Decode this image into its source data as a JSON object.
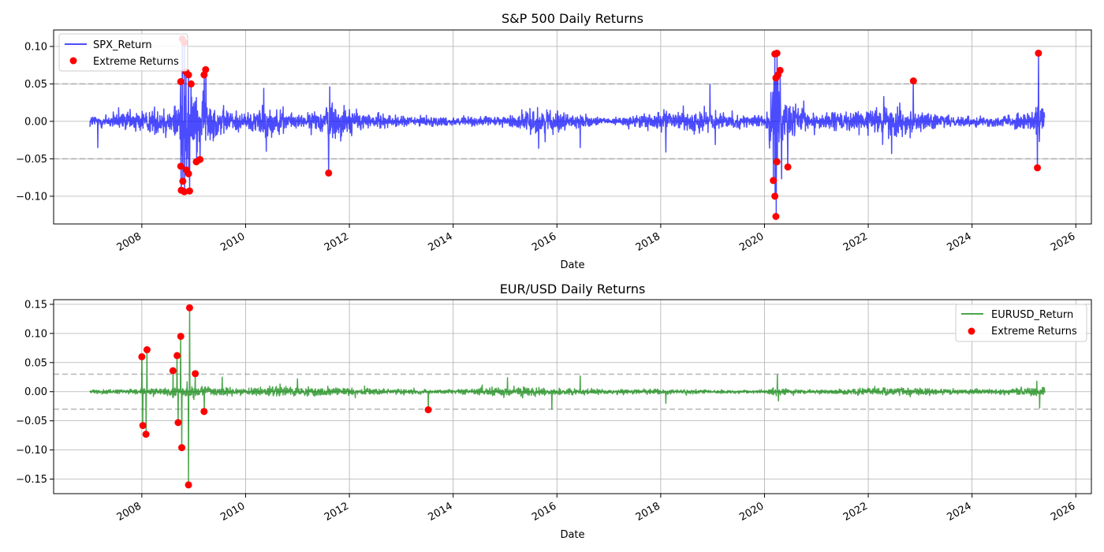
{
  "chart_data": [
    {
      "type": "line",
      "title": "S&P 500 Daily Returns",
      "xlabel": "Date",
      "ylabel": "",
      "x_ticks": [
        "2008",
        "2010",
        "2012",
        "2014",
        "2016",
        "2018",
        "2020",
        "2022",
        "2024",
        "2026"
      ],
      "y_ticks": [
        "0.10",
        "0.05",
        "0.00",
        "−0.05",
        "−0.10"
      ],
      "xlim": [
        2006.3,
        2026.3
      ],
      "ylim": [
        -0.137,
        0.122
      ],
      "threshold_lines": [
        0.05,
        -0.05
      ],
      "legend_position": "upper left",
      "grid": true,
      "series": [
        {
          "name": "SPX_Return",
          "kind": "line",
          "color": "#0000ff",
          "alpha": 0.7,
          "x_range": [
            2007.0,
            2025.4
          ],
          "noise_envelope": [
            [
              2007.0,
              0.012
            ],
            [
              2007.5,
              0.016
            ],
            [
              2008.0,
              0.022
            ],
            [
              2008.6,
              0.028
            ],
            [
              2008.75,
              0.07
            ],
            [
              2009.0,
              0.055
            ],
            [
              2009.3,
              0.04
            ],
            [
              2009.6,
              0.025
            ],
            [
              2010.0,
              0.015
            ],
            [
              2010.35,
              0.03
            ],
            [
              2010.7,
              0.02
            ],
            [
              2011.0,
              0.012
            ],
            [
              2011.5,
              0.02
            ],
            [
              2011.6,
              0.04
            ],
            [
              2011.9,
              0.03
            ],
            [
              2012.3,
              0.015
            ],
            [
              2013.0,
              0.01
            ],
            [
              2014.0,
              0.008
            ],
            [
              2015.0,
              0.009
            ],
            [
              2015.6,
              0.025
            ],
            [
              2016.0,
              0.018
            ],
            [
              2016.5,
              0.01
            ],
            [
              2017.0,
              0.005
            ],
            [
              2018.0,
              0.02
            ],
            [
              2018.3,
              0.015
            ],
            [
              2018.9,
              0.025
            ],
            [
              2019.2,
              0.012
            ],
            [
              2020.0,
              0.01
            ],
            [
              2020.17,
              0.07
            ],
            [
              2020.4,
              0.04
            ],
            [
              2020.8,
              0.02
            ],
            [
              2021.2,
              0.015
            ],
            [
              2022.0,
              0.022
            ],
            [
              2022.5,
              0.028
            ],
            [
              2023.0,
              0.018
            ],
            [
              2023.5,
              0.01
            ],
            [
              2024.5,
              0.01
            ],
            [
              2025.1,
              0.016
            ],
            [
              2025.35,
              0.04
            ],
            [
              2025.4,
              0.02
            ]
          ],
          "spikes": [
            [
              2007.15,
              -0.035
            ],
            [
              2010.35,
              0.044
            ],
            [
              2010.4,
              -0.04
            ],
            [
              2011.6,
              -0.069
            ],
            [
              2011.62,
              0.046
            ],
            [
              2015.65,
              0.038
            ],
            [
              2015.65,
              -0.036
            ],
            [
              2016.45,
              -0.035
            ],
            [
              2018.1,
              -0.041
            ],
            [
              2018.95,
              0.049
            ],
            [
              2019.05,
              -0.031
            ],
            [
              2022.3,
              0.033
            ],
            [
              2022.45,
              -0.043
            ]
          ]
        },
        {
          "name": "Extreme Returns",
          "kind": "scatter",
          "color": "#ff0000",
          "points": [
            [
              2008.75,
              0.053
            ],
            [
              2008.78,
              0.11
            ],
            [
              2008.82,
              0.105
            ],
            [
              2008.85,
              0.066
            ],
            [
              2008.9,
              0.062
            ],
            [
              2008.95,
              0.05
            ],
            [
              2008.75,
              -0.06
            ],
            [
              2008.76,
              -0.092
            ],
            [
              2008.79,
              -0.08
            ],
            [
              2008.82,
              -0.094
            ],
            [
              2008.86,
              -0.065
            ],
            [
              2008.9,
              -0.07
            ],
            [
              2008.92,
              -0.093
            ],
            [
              2009.05,
              -0.054
            ],
            [
              2009.12,
              -0.051
            ],
            [
              2009.2,
              0.062
            ],
            [
              2009.23,
              0.069
            ],
            [
              2011.6,
              -0.069
            ],
            [
              2020.2,
              0.09
            ],
            [
              2020.24,
              0.091
            ],
            [
              2020.22,
              0.058
            ],
            [
              2020.26,
              0.062
            ],
            [
              2020.3,
              0.068
            ],
            [
              2020.17,
              -0.079
            ],
            [
              2020.2,
              -0.1
            ],
            [
              2020.22,
              -0.127
            ],
            [
              2020.24,
              -0.054
            ],
            [
              2020.45,
              -0.061
            ],
            [
              2022.87,
              0.054
            ],
            [
              2025.28,
              0.091
            ],
            [
              2025.26,
              -0.062
            ]
          ]
        }
      ]
    },
    {
      "type": "line",
      "title": "EUR/USD Daily Returns",
      "xlabel": "Date",
      "ylabel": "",
      "x_ticks": [
        "2008",
        "2010",
        "2012",
        "2014",
        "2016",
        "2018",
        "2020",
        "2022",
        "2024",
        "2026"
      ],
      "y_ticks": [
        "0.15",
        "0.10",
        "0.05",
        "0.00",
        "−0.05",
        "−0.10",
        "−0.15"
      ],
      "xlim": [
        2006.3,
        2026.3
      ],
      "ylim": [
        -0.175,
        0.158
      ],
      "threshold_lines": [
        0.03,
        -0.03
      ],
      "legend_position": "upper right",
      "grid": true,
      "series": [
        {
          "name": "EURUSD_Return",
          "kind": "line",
          "color": "#008000",
          "alpha": 0.7,
          "x_range": [
            2007.0,
            2025.4
          ],
          "noise_envelope": [
            [
              2007.0,
              0.004
            ],
            [
              2007.7,
              0.006
            ],
            [
              2008.5,
              0.01
            ],
            [
              2008.8,
              0.016
            ],
            [
              2009.2,
              0.014
            ],
            [
              2009.5,
              0.01
            ],
            [
              2010.0,
              0.008
            ],
            [
              2010.5,
              0.012
            ],
            [
              2011.0,
              0.01
            ],
            [
              2011.5,
              0.012
            ],
            [
              2012.0,
              0.008
            ],
            [
              2013.0,
              0.006
            ],
            [
              2014.0,
              0.004
            ],
            [
              2015.0,
              0.012
            ],
            [
              2015.5,
              0.01
            ],
            [
              2016.0,
              0.008
            ],
            [
              2017.0,
              0.006
            ],
            [
              2018.0,
              0.006
            ],
            [
              2019.0,
              0.004
            ],
            [
              2020.0,
              0.004
            ],
            [
              2020.2,
              0.01
            ],
            [
              2020.5,
              0.005
            ],
            [
              2021.0,
              0.004
            ],
            [
              2022.0,
              0.008
            ],
            [
              2022.8,
              0.01
            ],
            [
              2023.5,
              0.006
            ],
            [
              2024.5,
              0.006
            ],
            [
              2025.3,
              0.012
            ],
            [
              2025.4,
              0.01
            ]
          ],
          "spikes": [
            [
              2009.55,
              0.025
            ],
            [
              2011.0,
              0.022
            ],
            [
              2015.05,
              0.024
            ],
            [
              2015.9,
              -0.03
            ],
            [
              2016.45,
              0.027
            ],
            [
              2018.1,
              -0.02
            ],
            [
              2020.25,
              0.029
            ],
            [
              2020.27,
              -0.016
            ],
            [
              2025.25,
              0.018
            ],
            [
              2025.3,
              -0.028
            ]
          ]
        },
        {
          "name": "Extreme Returns",
          "kind": "scatter",
          "color": "#ff0000",
          "points": [
            [
              2008.0,
              0.06
            ],
            [
              2008.02,
              -0.058
            ],
            [
              2008.1,
              0.072
            ],
            [
              2008.08,
              -0.073
            ],
            [
              2008.6,
              0.036
            ],
            [
              2008.68,
              0.062
            ],
            [
              2008.7,
              -0.053
            ],
            [
              2008.75,
              0.095
            ],
            [
              2008.77,
              -0.096
            ],
            [
              2008.92,
              0.144
            ],
            [
              2008.9,
              -0.16
            ],
            [
              2009.03,
              0.031
            ],
            [
              2009.2,
              -0.034
            ],
            [
              2013.52,
              -0.031
            ]
          ]
        }
      ]
    }
  ]
}
